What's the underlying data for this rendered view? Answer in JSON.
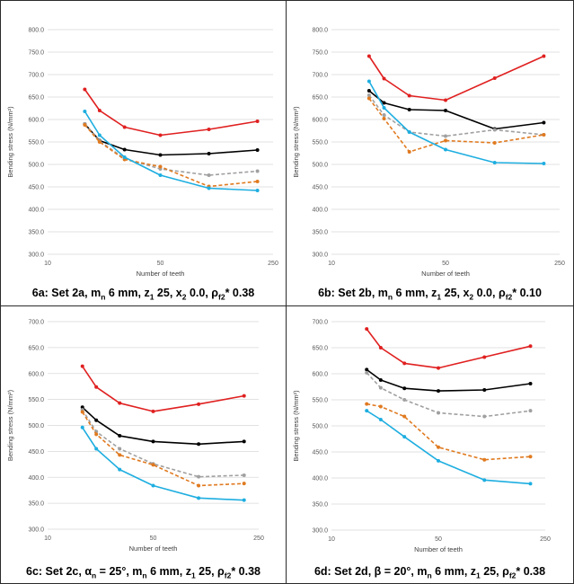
{
  "charts": [
    {
      "caption": {
        "p1": "6a: Set 2a, m",
        "s1": "n",
        "p2": " 6 mm, z",
        "s2": "1",
        "p3": " 25, x",
        "s3": "2",
        "p4": " 0.0, ρ",
        "s4": "f2",
        "p5": "* 0.38"
      },
      "chart_data": {
        "type": "line",
        "xlabel": "Number of teeth",
        "ylabel": "Bending  stress (N/mm²)",
        "xscale": "log",
        "xlim": [
          10,
          250
        ],
        "xticks": [
          "10",
          "50",
          "250"
        ],
        "ylim": [
          300,
          800
        ],
        "yticks": [
          "300.0",
          "350.0",
          "400.0",
          "450.0",
          "500.0",
          "550.0",
          "600.0",
          "650.0",
          "700.0",
          "750.0",
          "800.0"
        ],
        "series": [
          {
            "color": "#e02020",
            "dash": false,
            "x": [
              17,
              21,
              30,
              50,
              100,
              200
            ],
            "y": [
              667,
              620,
              583,
              565,
              578,
              596
            ]
          },
          {
            "color": "#000000",
            "dash": false,
            "x": [
              17,
              21,
              30,
              50,
              100,
              200
            ],
            "y": [
              590,
              553,
              533,
              521,
              524,
              532
            ]
          },
          {
            "color": "#a0a0a0",
            "dash": true,
            "x": [
              17,
              21,
              30,
              50,
              100,
              200
            ],
            "y": [
              590,
              552,
              513,
              490,
              476,
              485
            ]
          },
          {
            "color": "#e07a20",
            "dash": true,
            "x": [
              17,
              21,
              30,
              50,
              100,
              200
            ],
            "y": [
              588,
              550,
              511,
              495,
              451,
              462
            ]
          },
          {
            "color": "#1eaee0",
            "dash": false,
            "x": [
              17,
              21,
              30,
              50,
              100,
              200
            ],
            "y": [
              618,
              565,
              516,
              476,
              447,
              442
            ]
          }
        ]
      }
    },
    {
      "caption": {
        "p1": "6b: Set 2b, m",
        "s1": "n",
        "p2": " 6 mm, z",
        "s2": "1",
        "p3": " 25, x",
        "s3": "2",
        "p4": " 0.0, ρ",
        "s4": "f2",
        "p5": "* 0.10"
      },
      "chart_data": {
        "type": "line",
        "xlabel": "Number of teeth",
        "ylabel": "Bending  stress (N/mm²)",
        "xscale": "log",
        "xlim": [
          10,
          250
        ],
        "xticks": [
          "10",
          "50",
          "250"
        ],
        "ylim": [
          300,
          800
        ],
        "yticks": [
          "300.0",
          "350.0",
          "400.0",
          "450.0",
          "500.0",
          "550.0",
          "600.0",
          "650.0",
          "700.0",
          "750.0",
          "800.0"
        ],
        "series": [
          {
            "color": "#e02020",
            "dash": false,
            "x": [
              17,
              21,
              30,
              50,
              100,
              200
            ],
            "y": [
              741,
              691,
              653,
              643,
              692,
              741
            ]
          },
          {
            "color": "#000000",
            "dash": false,
            "x": [
              17,
              21,
              30,
              50,
              100,
              200
            ],
            "y": [
              664,
              637,
              622,
              620,
              579,
              593
            ]
          },
          {
            "color": "#a0a0a0",
            "dash": true,
            "x": [
              17,
              21,
              30,
              50,
              100,
              200
            ],
            "y": [
              654,
              610,
              572,
              563,
              577,
              566
            ]
          },
          {
            "color": "#e07a20",
            "dash": true,
            "x": [
              17,
              21,
              30,
              50,
              100,
              200
            ],
            "y": [
              647,
              602,
              528,
              553,
              548,
              566
            ]
          },
          {
            "color": "#1eaee0",
            "dash": false,
            "x": [
              17,
              21,
              30,
              50,
              100,
              200
            ],
            "y": [
              685,
              626,
              572,
              533,
              504,
              502
            ]
          }
        ]
      }
    },
    {
      "caption": {
        "p1": "6c: Set 2c, α",
        "s1": "n",
        "p2": " = 25°, m",
        "s2": "n",
        "p3": " 6 mm, z",
        "s3": "1",
        "p4": " 25, ρ",
        "s4": "f2",
        "p5": "* 0.38"
      },
      "chart_data": {
        "type": "line",
        "xlabel": "Number of teeth",
        "ylabel": "Bending  stress (N/mm²)",
        "xscale": "log",
        "xlim": [
          10,
          250
        ],
        "xticks": [
          "10",
          "50",
          "250"
        ],
        "ylim": [
          300,
          700
        ],
        "yticks": [
          "300.0",
          "350.0",
          "400.0",
          "450.0",
          "500.0",
          "550.0",
          "600.0",
          "650.0",
          "700.0"
        ],
        "series": [
          {
            "color": "#e02020",
            "dash": false,
            "x": [
              17,
              21,
              30,
              50,
              100,
              200
            ],
            "y": [
              614,
              574,
              543,
              527,
              541,
              557
            ]
          },
          {
            "color": "#000000",
            "dash": false,
            "x": [
              17,
              21,
              30,
              50,
              100,
              200
            ],
            "y": [
              535,
              510,
              480,
              469,
              464,
              469
            ]
          },
          {
            "color": "#a0a0a0",
            "dash": true,
            "x": [
              17,
              21,
              30,
              50,
              100,
              200
            ],
            "y": [
              530,
              488,
              455,
              426,
              401,
              404
            ]
          },
          {
            "color": "#e07a20",
            "dash": true,
            "x": [
              17,
              21,
              30,
              50,
              100,
              200
            ],
            "y": [
              526,
              483,
              443,
              424,
              384,
              388
            ]
          },
          {
            "color": "#1eaee0",
            "dash": false,
            "x": [
              17,
              21,
              30,
              50,
              100,
              200
            ],
            "y": [
              496,
              455,
              415,
              384,
              360,
              356
            ]
          }
        ]
      }
    },
    {
      "caption": {
        "p1": "6d: Set 2d, β = 20°, m",
        "s1": "n",
        "p2": " 6 mm, z",
        "s2": "1",
        "p3": " 25, ρ",
        "s3": "f2",
        "p4": "* 0.38",
        "s4": "",
        "p5": ""
      },
      "chart_data": {
        "type": "line",
        "xlabel": "Number of teeth",
        "ylabel": "Bending  stress (N/mm²)",
        "xscale": "log",
        "xlim": [
          10,
          250
        ],
        "xticks": [
          "10",
          "50",
          "250"
        ],
        "ylim": [
          300,
          700
        ],
        "yticks": [
          "300.0",
          "350.0",
          "400.0",
          "450.0",
          "500.0",
          "550.0",
          "600.0",
          "650.0",
          "700.0"
        ],
        "series": [
          {
            "color": "#e02020",
            "dash": false,
            "x": [
              17,
              21,
              30,
              50,
              100,
              200
            ],
            "y": [
              686,
              650,
              620,
              611,
              632,
              653
            ]
          },
          {
            "color": "#000000",
            "dash": false,
            "x": [
              17,
              21,
              30,
              50,
              100,
              200
            ],
            "y": [
              608,
              588,
              572,
              567,
              569,
              581
            ]
          },
          {
            "color": "#a0a0a0",
            "dash": true,
            "x": [
              17,
              21,
              30,
              50,
              100,
              200
            ],
            "y": [
              602,
              573,
              550,
              525,
              518,
              529
            ]
          },
          {
            "color": "#e07a20",
            "dash": true,
            "x": [
              17,
              21,
              30,
              50,
              100,
              200
            ],
            "y": [
              542,
              537,
              518,
              459,
              435,
              441
            ]
          },
          {
            "color": "#1eaee0",
            "dash": false,
            "x": [
              17,
              21,
              30,
              50,
              100,
              200
            ],
            "y": [
              529,
              512,
              479,
              433,
              396,
              389
            ]
          }
        ]
      }
    }
  ]
}
